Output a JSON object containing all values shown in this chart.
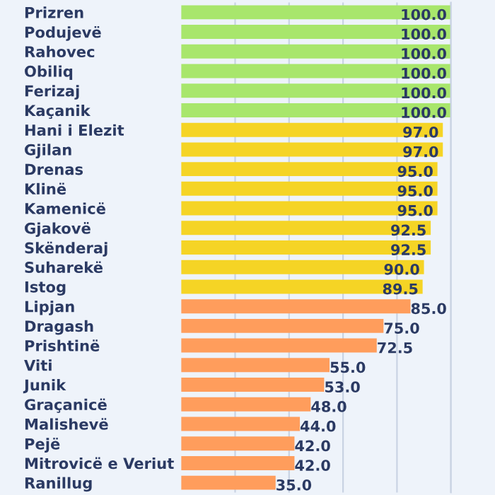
{
  "chart_data": {
    "type": "bar",
    "orientation": "horizontal",
    "categories": [
      "Prizren",
      "Podujevë",
      "Rahovec",
      "Obiliq",
      "Ferizaj",
      "Kaçanik",
      "Hani i Elezit",
      "Gjilan",
      "Drenas",
      "Klinë",
      "Kamenicë",
      "Gjakovë",
      "Skënderaj",
      "Suharekë",
      "Istog",
      "Lipjan",
      "Dragash",
      "Prishtinë",
      "Viti",
      "Junik",
      "Graçanicë",
      "Malishevë",
      "Pejë",
      "Mitrovicë e Veriut",
      "Ranillug"
    ],
    "values": [
      100,
      100,
      100,
      100,
      100,
      100,
      97,
      97,
      95,
      95,
      95,
      92.5,
      92.5,
      90,
      89.5,
      85,
      75,
      72.5,
      55,
      53,
      48,
      44,
      42,
      42,
      35
    ],
    "colors": [
      "#a8e66c",
      "#a8e66c",
      "#a8e66c",
      "#a8e66c",
      "#a8e66c",
      "#a8e66c",
      "#f5d425",
      "#f5d425",
      "#f5d425",
      "#f5d425",
      "#f5d425",
      "#f5d425",
      "#f5d425",
      "#f5d425",
      "#f5d425",
      "#ff9d5c",
      "#ff9d5c",
      "#ff9d5c",
      "#ff9d5c",
      "#ff9d5c",
      "#ff9d5c",
      "#ff9d5c",
      "#ff9d5c",
      "#ff9d5c",
      "#ff9d5c"
    ],
    "value_labels": [
      "100.0",
      "100.0",
      "100.0",
      "100.0",
      "100.0",
      "100.0",
      "97.0",
      "97.0",
      "95.0",
      "95.0",
      "95.0",
      "92.5",
      "92.5",
      "90.0",
      "89.5",
      "85.0",
      "75.0",
      "72.5",
      "55.0",
      "53.0",
      "48.0",
      "44.0",
      "42.0",
      "42.0",
      "35.0"
    ],
    "xlim": [
      0,
      100
    ],
    "xticks": [
      {
        "value": 20,
        "label": null
      },
      {
        "value": 40,
        "label": null
      },
      {
        "value": 60,
        "label": null
      },
      {
        "value": 80,
        "label": null
      },
      {
        "value": 100,
        "label": null
      }
    ],
    "grid": "x"
  }
}
